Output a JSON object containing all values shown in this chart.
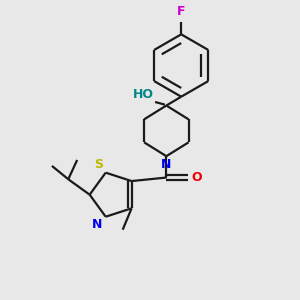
{
  "background_color": "#e8e8e8",
  "bond_color": "#1a1a1a",
  "N_color": "#0000ee",
  "O_color": "#ee0000",
  "S_color": "#bbbb00",
  "F_color": "#cc00cc",
  "HO_color": "#008888",
  "figsize": [
    3.0,
    3.0
  ],
  "dpi": 100,
  "xlim": [
    0,
    10
  ],
  "ylim": [
    0,
    10
  ]
}
